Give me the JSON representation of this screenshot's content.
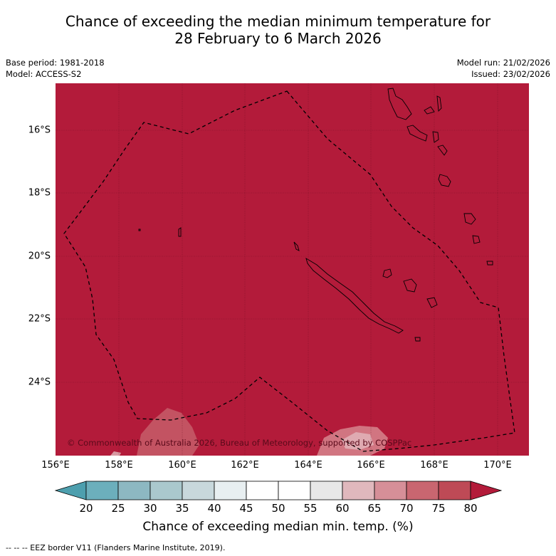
{
  "title": {
    "line1": "Chance of exceeding the median minimum temperature for",
    "line2": "28 February to 6 March 2026"
  },
  "meta": {
    "base_period": "Base period: 1981-2018",
    "model": "Model: ACCESS-S2",
    "model_run": "Model run: 21/02/2026",
    "issued": "Issued: 23/02/2026"
  },
  "map": {
    "background_color": "#b31b3a",
    "copyright": "© Commonwealth of Australia 2026, Bureau of Meteorology, supported by COSPPac",
    "lat_labels": [
      "16°S",
      "18°S",
      "20°S",
      "22°S",
      "24°S"
    ],
    "lon_labels": [
      "156°E",
      "158°E",
      "160°E",
      "162°E",
      "164°E",
      "166°E",
      "168°E",
      "170°E"
    ]
  },
  "colorbar": {
    "ticks": [
      "20",
      "25",
      "30",
      "35",
      "40",
      "45",
      "50",
      "55",
      "60",
      "65",
      "70",
      "75",
      "80"
    ],
    "colors": [
      "#4d9fae",
      "#6cafbc",
      "#8db8c2",
      "#aac8cd",
      "#c8d8dc",
      "#e8eff1",
      "#ffffff",
      "#ffffff",
      "#e8e8e8",
      "#e0b8bd",
      "#d68f98",
      "#c96670",
      "#be4a56",
      "#b31b3a"
    ],
    "label": "Chance of exceeding median min. temp. (%)"
  },
  "footer": "--  --  -- EEZ border V11 (Flanders Marine Institute, 2019)."
}
